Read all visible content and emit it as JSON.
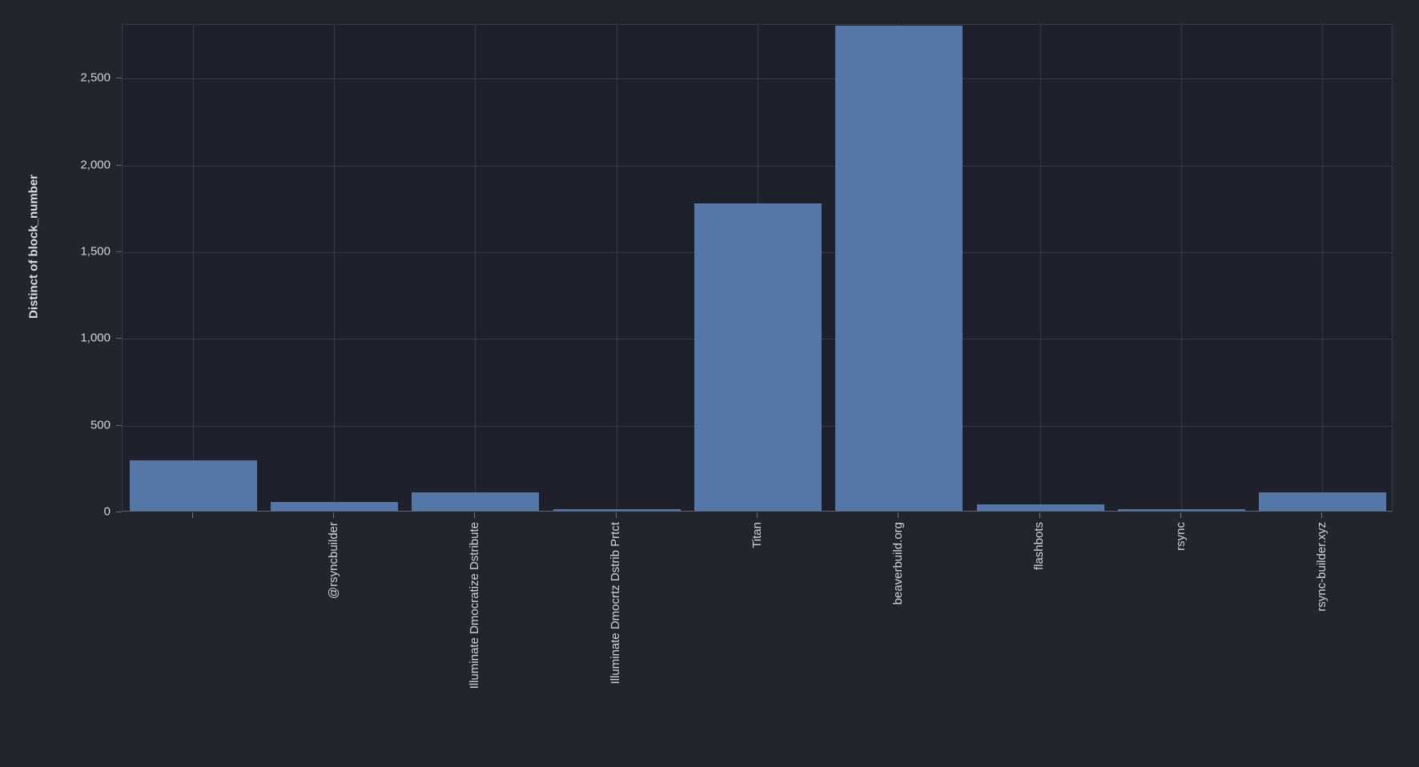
{
  "chart_data": {
    "type": "bar",
    "title": "",
    "xlabel": "",
    "ylabel": "Distinct of block_number",
    "categories": [
      "",
      "@rsyncbuilder",
      "Illuminate Dmocratize Dstribute",
      "Illuminate Dmocrtz Dstrib Prtct",
      "Titan",
      "beaverbuild.org",
      "flashbots",
      "rsync",
      "rsync-builder.xyz"
    ],
    "values": [
      293,
      49,
      108,
      9,
      1770,
      2798,
      36,
      10,
      107
    ],
    "ylim": [
      0,
      2810
    ],
    "yticks": {
      "values": [
        0,
        500,
        1000,
        1500,
        2000,
        2500
      ],
      "labels": [
        "0",
        "500",
        "1,000",
        "1,500",
        "2,000",
        "2,500"
      ]
    },
    "grid": true,
    "legend_position": "none",
    "colors": {
      "bar": "#5578a8",
      "background_outer": "#22242e",
      "background_plot": "#1e212b",
      "grid_line": "rgba(204,208,228,0.14)",
      "axis_line": "rgba(204,208,228,0.38)",
      "tick_text": "#d2d4dc"
    }
  }
}
